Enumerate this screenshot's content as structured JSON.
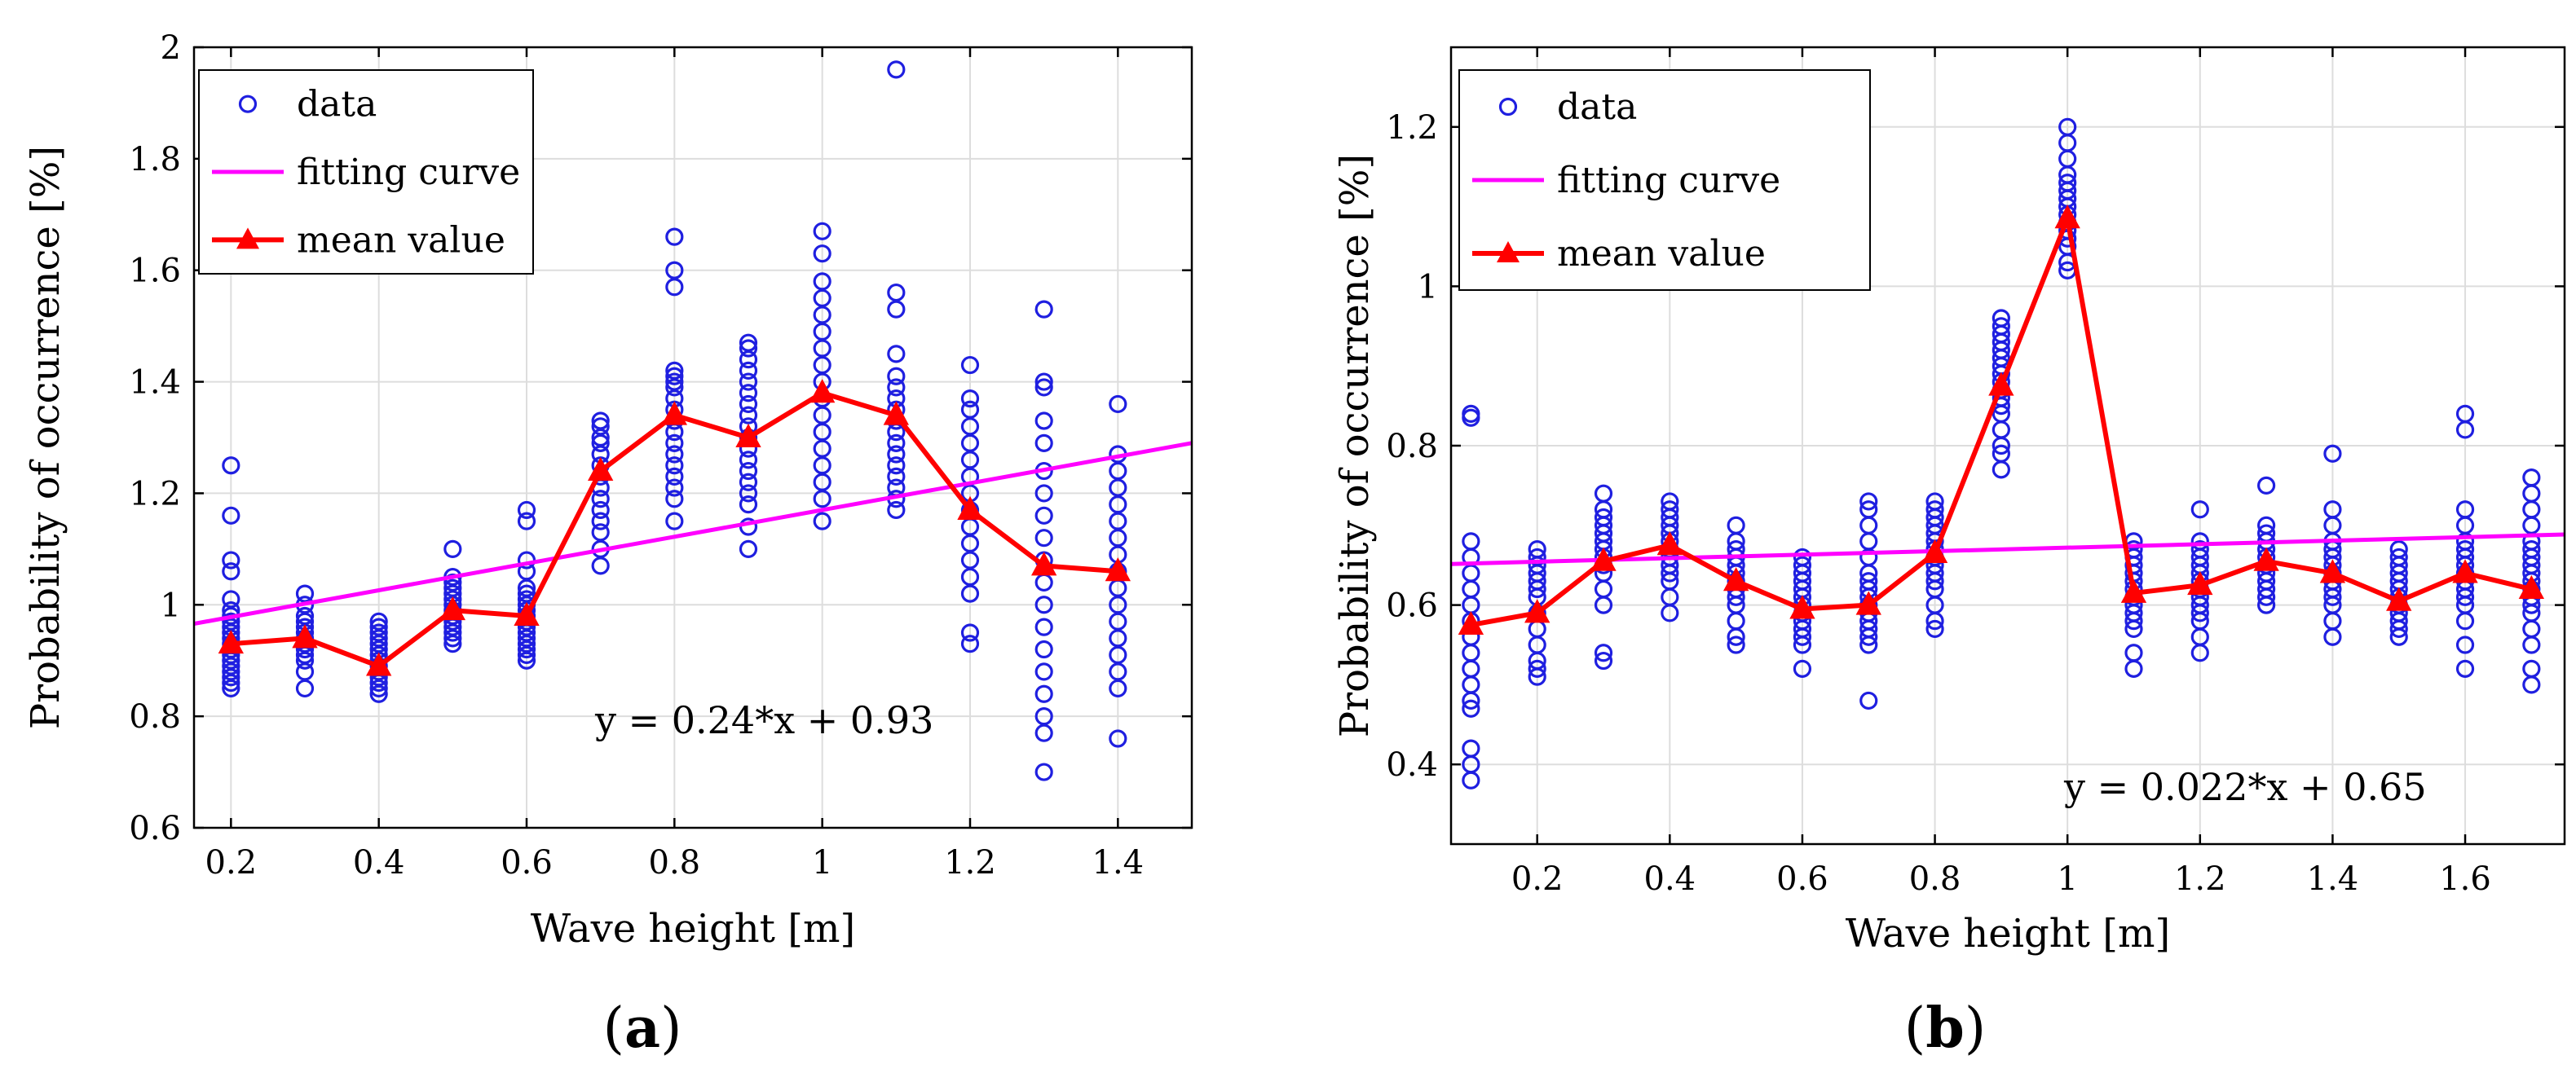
{
  "figure": {
    "panel_labels": [
      "(a)",
      "(b)"
    ],
    "legend_labels": {
      "data": "data",
      "fit": "fitting curve",
      "mean": "mean value"
    },
    "colors": {
      "data": "#1f1fe0",
      "fit": "#ff00ff",
      "mean": "#ff0000",
      "grid": "#dddddd",
      "axis": "#000000"
    }
  },
  "chart_data": [
    {
      "type": "scatter",
      "title": "",
      "panel_label": "(a)",
      "xlabel": "Wave height [m]",
      "ylabel": "Probability of occurrence [%]",
      "xlim": [
        0.15,
        1.5
      ],
      "ylim": [
        0.6,
        2.0
      ],
      "xticks": [
        0.2,
        0.4,
        0.6,
        0.8,
        1.0,
        1.2,
        1.4
      ],
      "yticks": [
        0.6,
        0.8,
        1.0,
        1.2,
        1.4,
        1.6,
        1.8,
        2.0
      ],
      "xtick_labels": [
        "0.2",
        "0.4",
        "0.6",
        "0.8",
        "1",
        "1.2",
        "1.4"
      ],
      "ytick_labels": [
        "0.6",
        "0.8",
        "1",
        "1.2",
        "1.4",
        "1.6",
        "1.8",
        "2"
      ],
      "grid": true,
      "legend_position": "top-left",
      "equation": "y = 0.24*x + 0.93",
      "fit": {
        "slope": 0.24,
        "intercept": 0.93
      },
      "mean": {
        "x": [
          0.2,
          0.3,
          0.4,
          0.5,
          0.6,
          0.7,
          0.8,
          0.9,
          1.0,
          1.1,
          1.2,
          1.3,
          1.4
        ],
        "y": [
          0.93,
          0.94,
          0.89,
          0.99,
          0.98,
          1.24,
          1.34,
          1.3,
          1.38,
          1.34,
          1.17,
          1.07,
          1.06
        ]
      },
      "scatter": [
        {
          "x": 0.2,
          "y": [
            0.85,
            0.86,
            0.87,
            0.88,
            0.89,
            0.9,
            0.91,
            0.92,
            0.93,
            0.94,
            0.95,
            0.96,
            0.97,
            0.98,
            0.99,
            1.01,
            1.06,
            1.08,
            1.16,
            1.25
          ]
        },
        {
          "x": 0.3,
          "y": [
            0.85,
            0.88,
            0.9,
            0.91,
            0.92,
            0.93,
            0.94,
            0.95,
            0.96,
            0.97,
            0.98,
            1.0,
            1.02
          ]
        },
        {
          "x": 0.4,
          "y": [
            0.84,
            0.85,
            0.86,
            0.87,
            0.88,
            0.89,
            0.9,
            0.91,
            0.92,
            0.93,
            0.94,
            0.95,
            0.96,
            0.97
          ]
        },
        {
          "x": 0.5,
          "y": [
            0.93,
            0.94,
            0.95,
            0.96,
            0.97,
            0.98,
            0.99,
            1.0,
            1.01,
            1.02,
            1.03,
            1.04,
            1.05,
            1.1
          ]
        },
        {
          "x": 0.6,
          "y": [
            0.9,
            0.91,
            0.92,
            0.93,
            0.94,
            0.95,
            0.96,
            0.97,
            0.98,
            0.99,
            1.0,
            1.01,
            1.02,
            1.03,
            1.06,
            1.08,
            1.15,
            1.17
          ]
        },
        {
          "x": 0.7,
          "y": [
            1.07,
            1.1,
            1.13,
            1.15,
            1.17,
            1.19,
            1.21,
            1.23,
            1.25,
            1.27,
            1.29,
            1.3,
            1.32,
            1.33
          ]
        },
        {
          "x": 0.8,
          "y": [
            1.15,
            1.19,
            1.21,
            1.23,
            1.25,
            1.27,
            1.29,
            1.31,
            1.33,
            1.35,
            1.37,
            1.39,
            1.4,
            1.41,
            1.42,
            1.57,
            1.6,
            1.66
          ]
        },
        {
          "x": 0.9,
          "y": [
            1.1,
            1.14,
            1.18,
            1.2,
            1.22,
            1.24,
            1.26,
            1.28,
            1.3,
            1.32,
            1.34,
            1.36,
            1.38,
            1.4,
            1.42,
            1.44,
            1.46,
            1.47
          ]
        },
        {
          "x": 1.0,
          "y": [
            1.15,
            1.19,
            1.22,
            1.25,
            1.28,
            1.31,
            1.34,
            1.37,
            1.4,
            1.43,
            1.46,
            1.49,
            1.52,
            1.55,
            1.58,
            1.63,
            1.67
          ]
        },
        {
          "x": 1.1,
          "y": [
            1.17,
            1.19,
            1.21,
            1.23,
            1.25,
            1.27,
            1.29,
            1.31,
            1.33,
            1.35,
            1.37,
            1.39,
            1.41,
            1.45,
            1.53,
            1.56,
            1.96
          ]
        },
        {
          "x": 1.2,
          "y": [
            0.93,
            0.95,
            1.02,
            1.05,
            1.08,
            1.11,
            1.14,
            1.17,
            1.2,
            1.23,
            1.26,
            1.29,
            1.32,
            1.35,
            1.37,
            1.43
          ]
        },
        {
          "x": 1.3,
          "y": [
            0.7,
            0.77,
            0.8,
            0.84,
            0.88,
            0.92,
            0.96,
            1.0,
            1.04,
            1.08,
            1.12,
            1.16,
            1.2,
            1.24,
            1.29,
            1.33,
            1.39,
            1.4,
            1.53
          ]
        },
        {
          "x": 1.4,
          "y": [
            0.76,
            0.85,
            0.88,
            0.91,
            0.94,
            0.97,
            1.0,
            1.03,
            1.06,
            1.09,
            1.12,
            1.15,
            1.18,
            1.21,
            1.24,
            1.27,
            1.36
          ]
        }
      ]
    },
    {
      "type": "scatter",
      "title": "",
      "panel_label": "(b)",
      "xlabel": "Wave height [m]",
      "ylabel": "Probability of occurrence [%]",
      "xlim": [
        0.07,
        1.75
      ],
      "ylim": [
        0.3,
        1.3
      ],
      "xticks": [
        0.2,
        0.4,
        0.6,
        0.8,
        1.0,
        1.2,
        1.4,
        1.6
      ],
      "yticks": [
        0.4,
        0.6,
        0.8,
        1.0,
        1.2
      ],
      "xtick_labels": [
        "0.2",
        "0.4",
        "0.6",
        "0.8",
        "1",
        "1.2",
        "1.4",
        "1.6"
      ],
      "ytick_labels": [
        "0.4",
        "0.6",
        "0.8",
        "1",
        "1.2"
      ],
      "grid": true,
      "legend_position": "top-left",
      "equation": "y = 0.022*x + 0.65",
      "fit": {
        "slope": 0.022,
        "intercept": 0.65
      },
      "mean": {
        "x": [
          0.1,
          0.2,
          0.3,
          0.4,
          0.5,
          0.6,
          0.7,
          0.8,
          0.9,
          1.0,
          1.1,
          1.2,
          1.3,
          1.4,
          1.5,
          1.6,
          1.7
        ],
        "y": [
          0.575,
          0.59,
          0.655,
          0.675,
          0.63,
          0.595,
          0.6,
          0.665,
          0.875,
          1.085,
          0.615,
          0.625,
          0.655,
          0.64,
          0.605,
          0.64,
          0.62
        ]
      },
      "scatter": [
        {
          "x": 0.1,
          "y": [
            0.38,
            0.4,
            0.42,
            0.47,
            0.48,
            0.5,
            0.52,
            0.54,
            0.56,
            0.58,
            0.6,
            0.62,
            0.64,
            0.66,
            0.68,
            0.835,
            0.84
          ]
        },
        {
          "x": 0.2,
          "y": [
            0.51,
            0.52,
            0.53,
            0.55,
            0.57,
            0.59,
            0.61,
            0.62,
            0.63,
            0.64,
            0.65,
            0.66,
            0.67
          ]
        },
        {
          "x": 0.3,
          "y": [
            0.53,
            0.54,
            0.6,
            0.62,
            0.64,
            0.65,
            0.66,
            0.67,
            0.68,
            0.69,
            0.7,
            0.71,
            0.72,
            0.74
          ]
        },
        {
          "x": 0.4,
          "y": [
            0.59,
            0.61,
            0.63,
            0.64,
            0.65,
            0.66,
            0.67,
            0.68,
            0.69,
            0.7,
            0.71,
            0.72,
            0.73
          ]
        },
        {
          "x": 0.5,
          "y": [
            0.55,
            0.56,
            0.58,
            0.6,
            0.61,
            0.62,
            0.63,
            0.64,
            0.65,
            0.66,
            0.67,
            0.68,
            0.7
          ]
        },
        {
          "x": 0.6,
          "y": [
            0.52,
            0.55,
            0.56,
            0.57,
            0.58,
            0.59,
            0.6,
            0.61,
            0.62,
            0.63,
            0.64,
            0.65,
            0.66
          ]
        },
        {
          "x": 0.7,
          "y": [
            0.48,
            0.55,
            0.56,
            0.57,
            0.58,
            0.59,
            0.6,
            0.61,
            0.62,
            0.63,
            0.64,
            0.66,
            0.68,
            0.7,
            0.72,
            0.73
          ]
        },
        {
          "x": 0.8,
          "y": [
            0.57,
            0.58,
            0.6,
            0.62,
            0.63,
            0.64,
            0.65,
            0.66,
            0.67,
            0.68,
            0.69,
            0.7,
            0.71,
            0.72,
            0.73
          ]
        },
        {
          "x": 0.9,
          "y": [
            0.77,
            0.79,
            0.8,
            0.82,
            0.84,
            0.85,
            0.86,
            0.87,
            0.88,
            0.89,
            0.9,
            0.91,
            0.92,
            0.93,
            0.94,
            0.95,
            0.96
          ]
        },
        {
          "x": 1.0,
          "y": [
            1.02,
            1.03,
            1.05,
            1.06,
            1.07,
            1.08,
            1.09,
            1.1,
            1.11,
            1.12,
            1.13,
            1.14,
            1.16,
            1.18,
            1.2
          ]
        },
        {
          "x": 1.1,
          "y": [
            0.52,
            0.54,
            0.57,
            0.58,
            0.59,
            0.6,
            0.61,
            0.62,
            0.63,
            0.64,
            0.65,
            0.66,
            0.67,
            0.68
          ]
        },
        {
          "x": 1.2,
          "y": [
            0.54,
            0.56,
            0.58,
            0.59,
            0.6,
            0.61,
            0.62,
            0.63,
            0.64,
            0.65,
            0.66,
            0.67,
            0.68,
            0.72
          ]
        },
        {
          "x": 1.3,
          "y": [
            0.6,
            0.61,
            0.62,
            0.63,
            0.64,
            0.65,
            0.66,
            0.67,
            0.68,
            0.69,
            0.7,
            0.75
          ]
        },
        {
          "x": 1.4,
          "y": [
            0.56,
            0.58,
            0.6,
            0.61,
            0.62,
            0.63,
            0.64,
            0.65,
            0.66,
            0.67,
            0.68,
            0.7,
            0.72,
            0.79
          ]
        },
        {
          "x": 1.5,
          "y": [
            0.56,
            0.57,
            0.58,
            0.59,
            0.6,
            0.61,
            0.62,
            0.63,
            0.64,
            0.65,
            0.66,
            0.67
          ]
        },
        {
          "x": 1.6,
          "y": [
            0.52,
            0.55,
            0.58,
            0.6,
            0.61,
            0.62,
            0.63,
            0.64,
            0.65,
            0.66,
            0.67,
            0.68,
            0.7,
            0.72,
            0.82,
            0.84
          ]
        },
        {
          "x": 1.7,
          "y": [
            0.5,
            0.52,
            0.55,
            0.57,
            0.59,
            0.6,
            0.61,
            0.62,
            0.63,
            0.64,
            0.65,
            0.66,
            0.67,
            0.68,
            0.7,
            0.72,
            0.74,
            0.76
          ]
        }
      ]
    }
  ]
}
